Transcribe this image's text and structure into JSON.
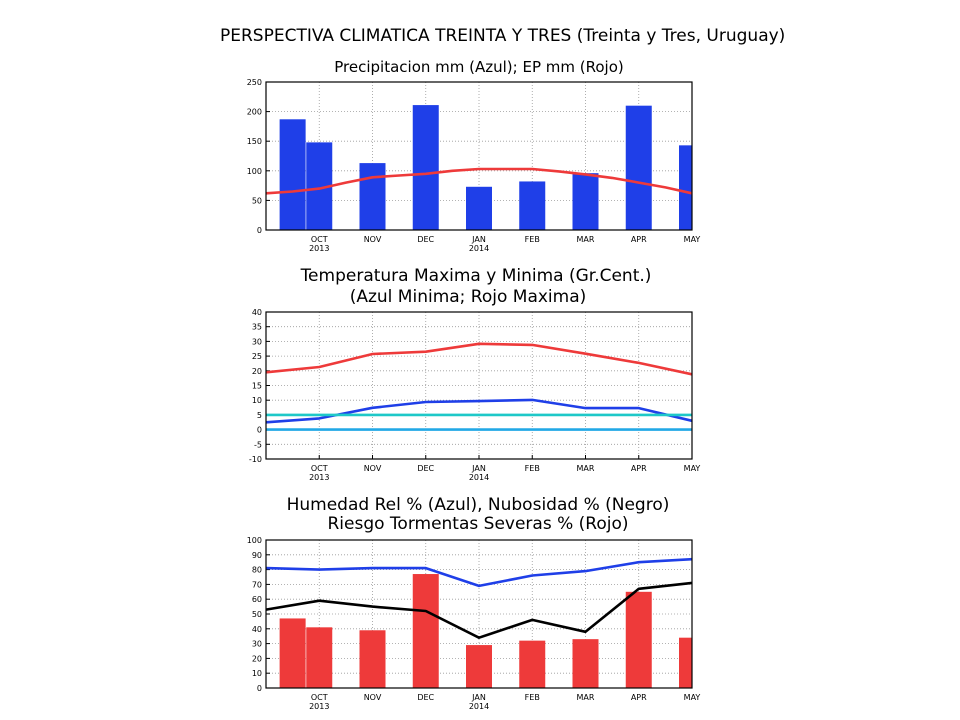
{
  "header": {
    "title": "PERSPECTIVA CLIMATICA TREINTA Y TRES (Treinta y Tres, Uruguay)"
  },
  "months": {
    "labels": [
      "OCT",
      "NOV",
      "DEC",
      "JAN",
      "FEB",
      "MAR",
      "APR",
      "MAY"
    ],
    "year_labels": [
      {
        "month": "OCT",
        "year": "2013"
      },
      {
        "month": "JAN",
        "year": "2014"
      }
    ]
  },
  "colors": {
    "blue": "#1f3fe8",
    "red": "#ee3a3a",
    "cyan": "#1ec8c8",
    "light_blue": "#22a8e6",
    "black": "#000000",
    "grid": "#9a9a9a"
  },
  "chart_data": [
    {
      "type": "bar",
      "title": "Precipitacion mm (Azul); EP mm (Rojo)",
      "x": [
        -0.5,
        0,
        1,
        2,
        3,
        4,
        5,
        6,
        7
      ],
      "xlim": [
        -1,
        7
      ],
      "ylim": [
        0,
        250
      ],
      "yticks": [
        0,
        50,
        100,
        150,
        200,
        250
      ],
      "grid": true,
      "series": [
        {
          "kind": "bar",
          "color": "blue",
          "values": [
            187,
            148,
            113,
            211,
            73,
            82,
            96,
            210,
            143
          ]
        },
        {
          "kind": "line",
          "color": "red",
          "x": [
            -1,
            -0.5,
            0,
            0.5,
            1,
            1.5,
            2,
            2.5,
            3,
            3.5,
            4,
            4.5,
            5,
            5.5,
            6,
            6.5,
            7
          ],
          "values": [
            62,
            65,
            70,
            80,
            89,
            92,
            95,
            100,
            103,
            103,
            103,
            99,
            94,
            88,
            80,
            72,
            62
          ]
        }
      ]
    },
    {
      "type": "line",
      "title": "Temperatura Maxima y Minima (Gr.Cent.)",
      "subtitle": "(Azul Minima; Rojo Maxima)",
      "xlim": [
        -1,
        7
      ],
      "ylim": [
        -10,
        40
      ],
      "yticks": [
        -10,
        -5,
        0,
        5,
        10,
        15,
        20,
        25,
        30,
        35,
        40
      ],
      "grid": true,
      "series": [
        {
          "color": "red",
          "x": [
            -1,
            0,
            1,
            2,
            3,
            4,
            5,
            6,
            7
          ],
          "values": [
            19.5,
            21.3,
            25.7,
            26.5,
            29.2,
            28.8,
            25.8,
            22.7,
            18.8
          ]
        },
        {
          "color": "blue",
          "x": [
            -1,
            0,
            1,
            2,
            3,
            4,
            5,
            6,
            7
          ],
          "values": [
            2.5,
            3.8,
            7.4,
            9.4,
            9.7,
            10.1,
            7.3,
            7.3,
            3.0
          ]
        },
        {
          "color": "cyan",
          "x": [
            -1,
            7
          ],
          "values": [
            5,
            5
          ]
        },
        {
          "color": "light_blue",
          "x": [
            -1,
            7
          ],
          "values": [
            0,
            0
          ]
        }
      ]
    },
    {
      "type": "bar",
      "title": "Humedad Rel % (Azul), Nubosidad % (Negro)",
      "subtitle": "Riesgo Tormentas Severas % (Rojo)",
      "x": [
        -0.5,
        0,
        1,
        2,
        3,
        4,
        5,
        6,
        7
      ],
      "xlim": [
        -1,
        7
      ],
      "ylim": [
        0,
        100
      ],
      "yticks": [
        0,
        10,
        20,
        30,
        40,
        50,
        60,
        70,
        80,
        90,
        100
      ],
      "grid": true,
      "series": [
        {
          "kind": "bar",
          "color": "red",
          "values": [
            47,
            41,
            39,
            77,
            29,
            32,
            33,
            65,
            34
          ]
        },
        {
          "kind": "line",
          "color": "blue",
          "x": [
            -1,
            0,
            1,
            2,
            3,
            4,
            5,
            6,
            7
          ],
          "values": [
            81,
            80,
            81,
            81,
            69,
            76,
            79,
            85,
            87
          ]
        },
        {
          "kind": "line",
          "color": "black",
          "x": [
            -1,
            0,
            1,
            2,
            3,
            4,
            5,
            6,
            7
          ],
          "values": [
            53,
            59,
            55,
            52,
            34,
            46,
            38,
            67,
            71
          ]
        }
      ]
    }
  ]
}
